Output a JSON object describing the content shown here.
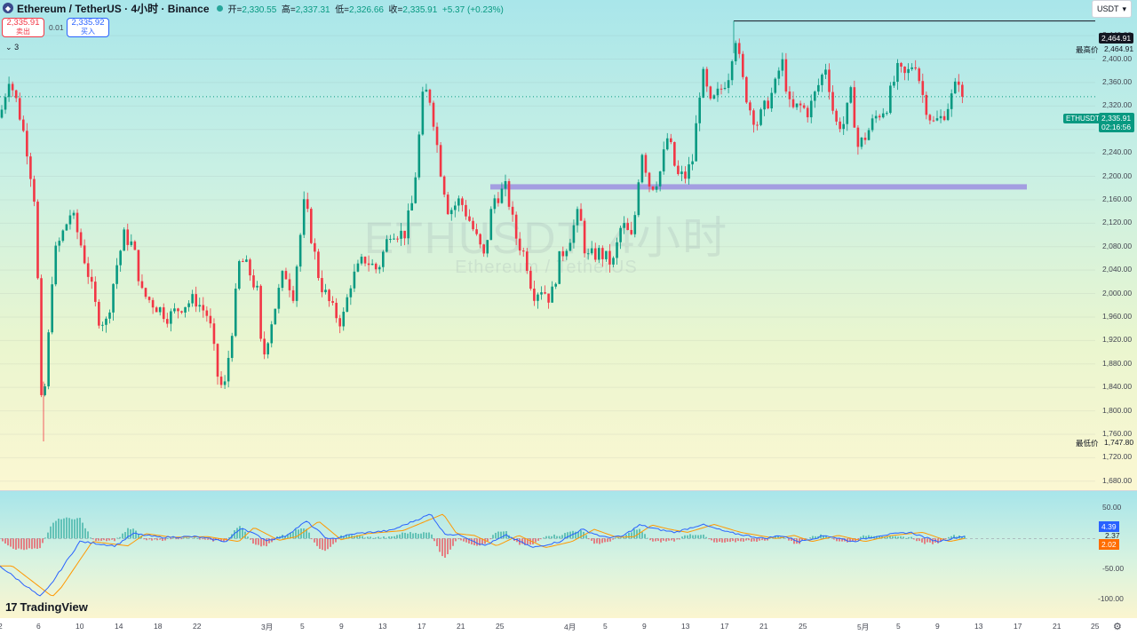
{
  "legend": {
    "symbol_title": "Ethereum / TetherUS · 4小时 · Binance",
    "open_label": "开=",
    "open": "2,330.55",
    "high_label": "高=",
    "high": "2,337.31",
    "low_label": "低=",
    "low": "2,326.66",
    "close_label": "收=",
    "close": "2,335.91",
    "change": "+5.37 (+0.23%)"
  },
  "trade": {
    "sell_price": "2,335.91",
    "sell_label": "卖出",
    "spread": "0.01",
    "buy_price": "2,335.92",
    "buy_label": "买入"
  },
  "collapse_label": "3",
  "currency": "USDT",
  "watermark": {
    "line1": "ETHUSDT, 4小时",
    "line2": "Ethereum / TetherUS"
  },
  "price_axis": {
    "ticks": [
      "2,440.00",
      "2,400.00",
      "2,360.00",
      "2,320.00",
      "2,280.00",
      "2,240.00",
      "2,200.00",
      "2,160.00",
      "2,120.00",
      "2,080.00",
      "2,040.00",
      "2,000.00",
      "1,960.00",
      "1,920.00",
      "1,880.00",
      "1,840.00",
      "1,800.00",
      "1,760.00",
      "1,720.00",
      "1,680.00"
    ],
    "high_tag": "2,464.91",
    "high_label": "最高价",
    "high_value": "2,464.91",
    "low_label": "最低价",
    "low_value": "1,747.80",
    "symbol_tag": "ETHUSDT",
    "current_price": "2,335.91",
    "countdown": "02:16:56"
  },
  "indicator_axis": {
    "ticks": [
      "50.00",
      "-50.00",
      "-100.00"
    ],
    "macd": "4.39",
    "histogram": "2.37",
    "signal": "2.02"
  },
  "time_axis": [
    "2",
    "6",
    "10",
    "14",
    "18",
    "22",
    "3月",
    "5",
    "9",
    "13",
    "17",
    "21",
    "25",
    "4月",
    "5",
    "9",
    "13",
    "17",
    "21",
    "25",
    "5月",
    "5",
    "9",
    "13",
    "17",
    "21",
    "25"
  ],
  "branding": {
    "mark": "17",
    "text": "TradingView"
  },
  "chart_data": {
    "type": "candlestick",
    "symbol": "ETHUSDT",
    "interval": "4小时",
    "y_range": [
      1660,
      2475
    ],
    "last_close": 2335.91,
    "period_high": 2464.91,
    "period_low": 1747.8,
    "support_zone_level": 2182,
    "path_waypoints": [
      [
        0,
        2300
      ],
      [
        10,
        2370
      ],
      [
        20,
        2320
      ],
      [
        30,
        2250
      ],
      [
        40,
        2150
      ],
      [
        47,
        1790
      ],
      [
        52,
        1860
      ],
      [
        60,
        2060
      ],
      [
        70,
        2100
      ],
      [
        80,
        2140
      ],
      [
        90,
        2090
      ],
      [
        100,
        2030
      ],
      [
        110,
        1960
      ],
      [
        120,
        1950
      ],
      [
        130,
        2040
      ],
      [
        140,
        2100
      ],
      [
        150,
        2080
      ],
      [
        160,
        2000
      ],
      [
        175,
        1980
      ],
      [
        190,
        1960
      ],
      [
        205,
        1980
      ],
      [
        220,
        1990
      ],
      [
        235,
        1960
      ],
      [
        245,
        1860
      ],
      [
        252,
        1830
      ],
      [
        262,
        1950
      ],
      [
        270,
        2060
      ],
      [
        280,
        2040
      ],
      [
        290,
        2000
      ],
      [
        295,
        1880
      ],
      [
        305,
        1950
      ],
      [
        320,
        2040
      ],
      [
        330,
        2000
      ],
      [
        343,
        2160
      ],
      [
        350,
        2100
      ],
      [
        360,
        2020
      ],
      [
        375,
        1970
      ],
      [
        385,
        1950
      ],
      [
        395,
        2020
      ],
      [
        410,
        2060
      ],
      [
        425,
        2040
      ],
      [
        440,
        2110
      ],
      [
        455,
        2100
      ],
      [
        465,
        2160
      ],
      [
        477,
        2350
      ],
      [
        485,
        2330
      ],
      [
        495,
        2220
      ],
      [
        505,
        2140
      ],
      [
        518,
        2160
      ],
      [
        530,
        2120
      ],
      [
        545,
        2060
      ],
      [
        555,
        2160
      ],
      [
        570,
        2180
      ],
      [
        580,
        2100
      ],
      [
        592,
        2060
      ],
      [
        600,
        2000
      ],
      [
        610,
        2010
      ],
      [
        620,
        1990
      ],
      [
        630,
        2060
      ],
      [
        640,
        2090
      ],
      [
        652,
        2140
      ],
      [
        660,
        2060
      ],
      [
        675,
        2070
      ],
      [
        690,
        2050
      ],
      [
        700,
        2120
      ],
      [
        712,
        2090
      ],
      [
        722,
        2250
      ],
      [
        732,
        2180
      ],
      [
        742,
        2200
      ],
      [
        752,
        2270
      ],
      [
        762,
        2200
      ],
      [
        772,
        2200
      ],
      [
        780,
        2230
      ],
      [
        790,
        2380
      ],
      [
        800,
        2320
      ],
      [
        812,
        2350
      ],
      [
        822,
        2380
      ],
      [
        827,
        2450
      ],
      [
        835,
        2370
      ],
      [
        843,
        2320
      ],
      [
        852,
        2290
      ],
      [
        862,
        2320
      ],
      [
        872,
        2350
      ],
      [
        880,
        2400
      ],
      [
        890,
        2310
      ],
      [
        900,
        2320
      ],
      [
        910,
        2310
      ],
      [
        920,
        2350
      ],
      [
        930,
        2390
      ],
      [
        940,
        2290
      ],
      [
        950,
        2290
      ],
      [
        958,
        2340
      ],
      [
        966,
        2250
      ],
      [
        975,
        2270
      ],
      [
        985,
        2300
      ],
      [
        998,
        2320
      ],
      [
        1010,
        2380
      ],
      [
        1020,
        2370
      ],
      [
        1030,
        2400
      ],
      [
        1040,
        2330
      ],
      [
        1050,
        2290
      ],
      [
        1060,
        2300
      ],
      [
        1070,
        2330
      ],
      [
        1080,
        2370
      ],
      [
        1086,
        2337
      ]
    ],
    "macd_waypoints": [
      [
        0,
        -45
      ],
      [
        45,
        -95
      ],
      [
        55,
        -80
      ],
      [
        90,
        -5
      ],
      [
        130,
        -12
      ],
      [
        150,
        8
      ],
      [
        180,
        2
      ],
      [
        220,
        3
      ],
      [
        255,
        -5
      ],
      [
        272,
        18
      ],
      [
        300,
        -3
      ],
      [
        320,
        3
      ],
      [
        345,
        28
      ],
      [
        370,
        -2
      ],
      [
        400,
        8
      ],
      [
        440,
        13
      ],
      [
        485,
        40
      ],
      [
        500,
        8
      ],
      [
        520,
        5
      ],
      [
        545,
        -12
      ],
      [
        570,
        5
      ],
      [
        600,
        -15
      ],
      [
        630,
        -5
      ],
      [
        655,
        15
      ],
      [
        680,
        2
      ],
      [
        700,
        3
      ],
      [
        720,
        22
      ],
      [
        740,
        15
      ],
      [
        760,
        10
      ],
      [
        790,
        23
      ],
      [
        820,
        10
      ],
      [
        860,
        0
      ],
      [
        880,
        5
      ],
      [
        900,
        -5
      ],
      [
        930,
        5
      ],
      [
        960,
        -5
      ],
      [
        990,
        5
      ],
      [
        1025,
        10
      ],
      [
        1055,
        -5
      ],
      [
        1085,
        4
      ]
    ]
  }
}
